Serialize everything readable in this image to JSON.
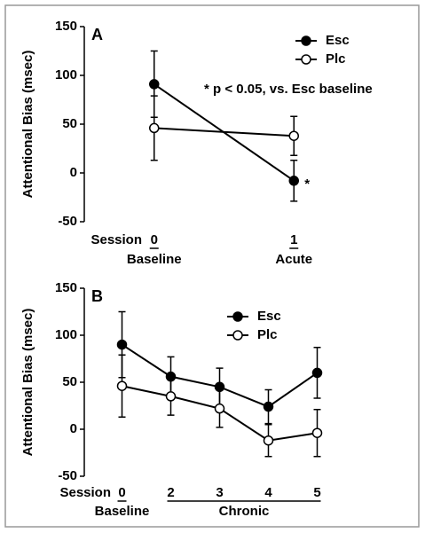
{
  "chart_data": [
    {
      "type": "line",
      "panel_label": "A",
      "x_label": "Session",
      "y_label": "Attentional Bias (msec)",
      "categories": [
        "0",
        "1"
      ],
      "group_labels": [
        {
          "label": "Baseline",
          "from": 0,
          "to": 0
        },
        {
          "label": "Acute",
          "from": 1,
          "to": 1
        }
      ],
      "series": [
        {
          "name": "Esc",
          "color": "#000000",
          "fill": "#000000",
          "values": [
            91,
            -8
          ],
          "errors": [
            34,
            21
          ]
        },
        {
          "name": "Plc",
          "color": "#000000",
          "fill": "#ffffff",
          "values": [
            46,
            38
          ],
          "errors": [
            33,
            20
          ]
        }
      ],
      "annotation": "* p < 0.05, vs. Esc baseline",
      "significance": {
        "text": "*",
        "series": 0,
        "index": 1
      },
      "ylim": [
        -50,
        150
      ],
      "yticks": [
        -50,
        0,
        50,
        100,
        150
      ],
      "legend": "upper right"
    },
    {
      "type": "line",
      "panel_label": "B",
      "x_label": "Session",
      "y_label": "Attentional Bias (msec)",
      "categories": [
        "0",
        "2",
        "3",
        "4",
        "5"
      ],
      "group_labels": [
        {
          "label": "Baseline",
          "from": 0,
          "to": 0
        },
        {
          "label": "Chronic",
          "from": 1,
          "to": 4
        }
      ],
      "series": [
        {
          "name": "Esc",
          "color": "#000000",
          "fill": "#000000",
          "values": [
            90,
            56,
            45,
            24,
            60
          ],
          "errors": [
            35,
            21,
            20,
            18,
            27
          ]
        },
        {
          "name": "Plc",
          "color": "#000000",
          "fill": "#ffffff",
          "values": [
            46,
            35,
            22,
            -12,
            -4
          ],
          "errors": [
            33,
            20,
            20,
            17,
            25
          ]
        }
      ],
      "ylim": [
        -50,
        150
      ],
      "yticks": [
        -50,
        0,
        50,
        100,
        150
      ],
      "legend": "upper center"
    }
  ]
}
